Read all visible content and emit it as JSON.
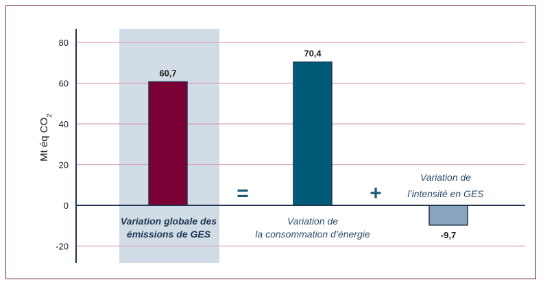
{
  "chart_data": {
    "type": "bar",
    "ylabel_main": "Mt éq CO",
    "ylabel_sub": "2",
    "ylim": [
      -25,
      85
    ],
    "yticks": [
      -20,
      0,
      20,
      40,
      60,
      80
    ],
    "ytick_labels": [
      "-20",
      "0",
      "20",
      "40",
      "60",
      "80"
    ],
    "grid": true,
    "operators": [
      "=",
      "+"
    ],
    "bars": [
      {
        "value": 60.7,
        "label": "60,7",
        "color": "#7a0035",
        "cat_lines": [
          "Variation globale des",
          "émissions de GES"
        ],
        "highlight": true
      },
      {
        "value": 70.4,
        "label": "70,4",
        "color": "#005a78",
        "cat_lines": [
          "Variation de",
          "la consommation d’énergie"
        ],
        "highlight": false
      },
      {
        "value": -9.7,
        "label": "-9,7",
        "color": "#8aa4bf",
        "cat_lines": [
          "Variation de",
          "l’intensité en GES"
        ],
        "highlight": false
      }
    ],
    "colors": {
      "grid": "#d9a3b6",
      "axis": "#1f3550",
      "highlight_bg": "#d2dce7"
    }
  }
}
